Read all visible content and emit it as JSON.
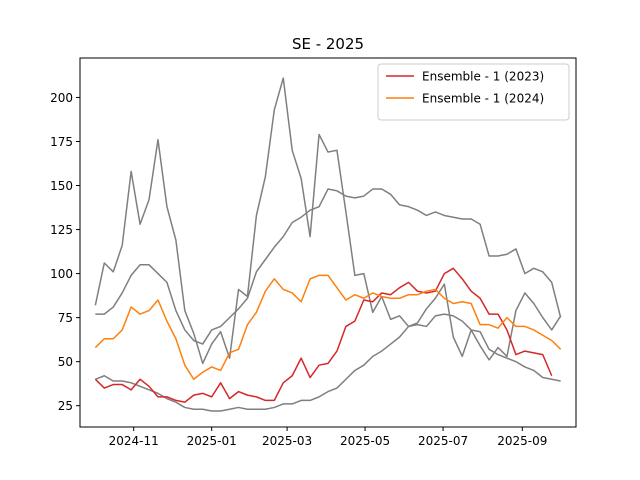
{
  "chart_data": {
    "type": "line",
    "title": "SE - 2025",
    "xlabel": "",
    "ylabel": "",
    "x_range": [
      "2024-09-20",
      "2025-10-13"
    ],
    "ylim": [
      12.9,
      222.4
    ],
    "grid": false,
    "legend_position": "top-right",
    "x_ticks": [
      {
        "date": "2024-11-01",
        "label": "2024-11"
      },
      {
        "date": "2025-01-01",
        "label": "2025-01"
      },
      {
        "date": "2025-03-01",
        "label": "2025-03"
      },
      {
        "date": "2025-05-01",
        "label": "2025-05"
      },
      {
        "date": "2025-07-01",
        "label": "2025-07"
      },
      {
        "date": "2025-09-01",
        "label": "2025-09"
      }
    ],
    "y_ticks": [
      25,
      50,
      75,
      100,
      125,
      150,
      175,
      200
    ],
    "x_dates": [
      "2024-10-02",
      "2024-10-09",
      "2024-10-16",
      "2024-10-23",
      "2024-10-30",
      "2024-11-06",
      "2024-11-13",
      "2024-11-20",
      "2024-11-27",
      "2024-12-04",
      "2024-12-11",
      "2024-12-18",
      "2024-12-25",
      "2025-01-01",
      "2025-01-08",
      "2025-01-15",
      "2025-01-22",
      "2025-01-29",
      "2025-02-05",
      "2025-02-12",
      "2025-02-19",
      "2025-02-26",
      "2025-03-05",
      "2025-03-12",
      "2025-03-19",
      "2025-03-26",
      "2025-04-02",
      "2025-04-09",
      "2025-04-16",
      "2025-04-23",
      "2025-04-30",
      "2025-05-07",
      "2025-05-14",
      "2025-05-21",
      "2025-05-28",
      "2025-06-04",
      "2025-06-11",
      "2025-06-18",
      "2025-06-25",
      "2025-07-02",
      "2025-07-09",
      "2025-07-16",
      "2025-07-23",
      "2025-07-30",
      "2025-08-06",
      "2025-08-13",
      "2025-08-20",
      "2025-08-27",
      "2025-09-03",
      "2025-09-10",
      "2025-09-17",
      "2025-09-24",
      "2025-10-01"
    ],
    "series": [
      {
        "name": "Ensemble - 1 (2023)",
        "color": "#d62728",
        "in_legend": true,
        "values": [
          40,
          35,
          37,
          37,
          34,
          40,
          36,
          30,
          30,
          28,
          27,
          31,
          32,
          30,
          38,
          29,
          33,
          31,
          30,
          28,
          28,
          38,
          42,
          52,
          41,
          48,
          49,
          56,
          70,
          73,
          85,
          84,
          89,
          88,
          92,
          95,
          90,
          89,
          90,
          100,
          103,
          97,
          90,
          86,
          77,
          77,
          68,
          54,
          56,
          55,
          54,
          42
        ]
      },
      {
        "name": "Ensemble - 1 (2024)",
        "color": "#ff7f0e",
        "in_legend": true,
        "values": [
          58,
          63,
          63,
          68,
          81,
          77,
          79,
          85,
          73,
          63,
          48,
          40,
          44,
          47,
          45,
          55,
          57,
          71,
          78,
          90,
          97,
          91,
          89,
          84,
          97,
          99,
          99,
          92,
          85,
          88,
          86,
          89,
          87,
          86,
          86,
          88,
          88,
          90,
          91,
          86,
          83,
          84,
          83,
          71,
          71,
          69,
          75,
          70,
          70,
          68,
          65,
          62,
          57
        ]
      },
      {
        "name": "",
        "color": "#7f7f7f",
        "in_legend": false,
        "values": [
          82,
          106,
          101,
          116,
          158,
          128,
          142,
          176,
          138,
          119,
          79,
          66,
          49,
          60,
          67,
          52,
          91,
          87,
          133,
          155,
          193,
          211,
          170,
          154,
          121,
          179,
          169,
          170,
          135,
          99,
          100,
          78,
          87,
          74,
          76,
          70,
          72,
          80,
          86,
          94,
          64,
          53,
          68,
          59,
          51,
          58,
          53,
          79,
          89,
          83,
          75,
          68,
          76
        ]
      },
      {
        "name": "",
        "color": "#7f7f7f",
        "in_legend": false,
        "values": [
          77,
          77,
          81,
          89,
          99,
          105,
          105,
          100,
          95,
          79,
          68,
          62,
          60,
          68,
          70,
          75,
          80,
          86,
          101,
          108,
          115,
          121,
          129,
          132,
          136,
          138,
          148,
          147,
          144,
          143,
          144,
          148,
          148,
          145,
          139,
          138,
          136,
          133,
          135,
          133,
          132,
          131,
          131,
          128,
          110,
          110,
          111,
          114,
          100,
          103,
          101,
          95,
          75
        ]
      },
      {
        "name": "",
        "color": "#7f7f7f",
        "in_legend": false,
        "values": [
          40,
          42,
          39,
          39,
          38,
          36,
          34,
          32,
          29,
          27,
          24,
          23,
          23,
          22,
          22,
          23,
          24,
          23,
          23,
          23,
          24,
          26,
          26,
          28,
          28,
          30,
          33,
          35,
          40,
          45,
          48,
          53,
          56,
          60,
          64,
          70,
          71,
          70,
          76,
          77,
          76,
          73,
          68,
          67,
          57,
          54,
          52,
          50,
          47,
          45,
          41,
          40,
          39
        ]
      }
    ]
  }
}
